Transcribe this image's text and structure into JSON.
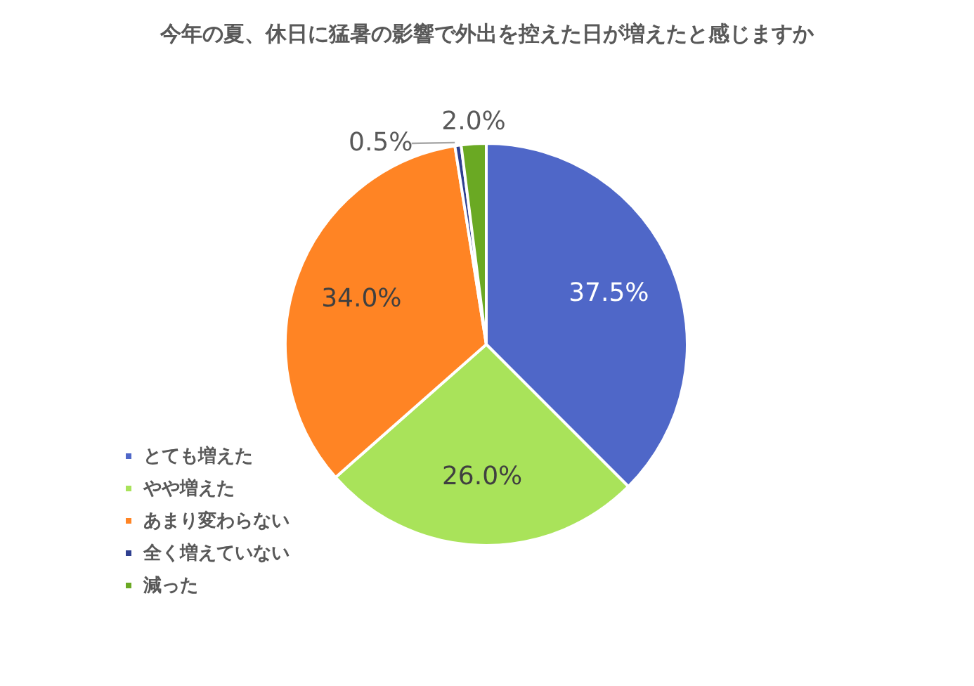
{
  "chart_data": {
    "type": "pie",
    "title": "今年の夏、休日に猛暑の影響で外出を控えた日が増えたと感じますか",
    "categories": [
      "とても増えた",
      "やや増えた",
      "あまり変わらない",
      "全く増えていない",
      "減った"
    ],
    "values": [
      37.5,
      26.0,
      34.0,
      0.5,
      2.0
    ],
    "colors": [
      "#4f67c8",
      "#a9e35a",
      "#ff8424",
      "#2e3f8f",
      "#6aa923"
    ],
    "value_labels": [
      "37.5%",
      "26.0%",
      "34.0%",
      "0.5%",
      "2.0%"
    ],
    "legend": "bottom left"
  }
}
